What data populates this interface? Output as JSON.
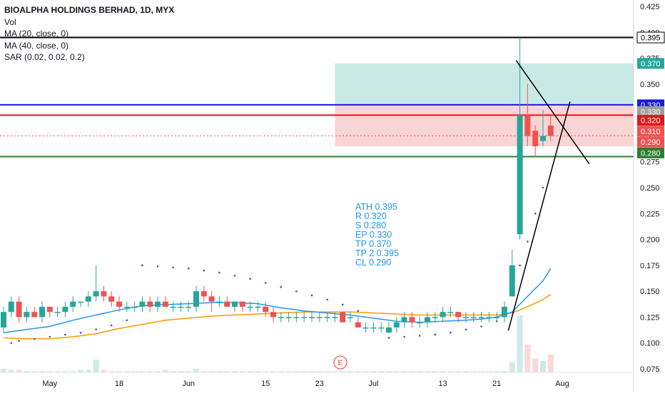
{
  "legend": {
    "title": "BIOALPHA HOLDINGS BERHAD, 1D, MYX",
    "vol": "Vol",
    "ma20": "MA (20, close, 0)",
    "ma40": "MA (40, close, 0)",
    "sar": "SAR (0.02, 0.02, 0.2)"
  },
  "notes": [
    "ATH 0.395",
    "R 0.320",
    "S 0.280",
    "EP 0.330",
    "TP 0.370",
    "TP 2 0.395",
    "CL 0.290"
  ],
  "event_marker": "E",
  "colors": {
    "up": "#26a69a",
    "down": "#ef5350",
    "ma20": "#2196f3",
    "ma40": "#ff9800",
    "sar": "#3f51b5",
    "black_line": "#000000",
    "blue_line": "#1a1ad8",
    "red_line": "#e01818",
    "green_line": "#2e7d32",
    "target_zone": "#b2dfdb",
    "stop_zone": "#f8c9c9",
    "note_text": "#2196f3"
  },
  "chart_data": {
    "type": "candlestick",
    "x_ticks": [
      "May",
      "18",
      "Jun",
      "15",
      "23",
      "Jul",
      "13",
      "21",
      "Aug"
    ],
    "y_ticks": [
      "0.075",
      "0.100",
      "0.125",
      "0.150",
      "0.175",
      "0.200",
      "0.225",
      "0.250",
      "0.275",
      "0.300",
      "0.325",
      "0.350",
      "0.375",
      "0.400",
      "0.425"
    ],
    "ylim": [
      0.07,
      0.43
    ],
    "candles": [
      {
        "o": 0.115,
        "h": 0.135,
        "l": 0.11,
        "c": 0.13
      },
      {
        "o": 0.13,
        "h": 0.145,
        "l": 0.125,
        "c": 0.14
      },
      {
        "o": 0.14,
        "h": 0.145,
        "l": 0.12,
        "c": 0.125
      },
      {
        "o": 0.125,
        "h": 0.135,
        "l": 0.12,
        "c": 0.13
      },
      {
        "o": 0.13,
        "h": 0.135,
        "l": 0.125,
        "c": 0.125
      },
      {
        "o": 0.125,
        "h": 0.14,
        "l": 0.12,
        "c": 0.135
      },
      {
        "o": 0.135,
        "h": 0.135,
        "l": 0.125,
        "c": 0.13
      },
      {
        "o": 0.13,
        "h": 0.135,
        "l": 0.125,
        "c": 0.13
      },
      {
        "o": 0.13,
        "h": 0.14,
        "l": 0.125,
        "c": 0.135
      },
      {
        "o": 0.135,
        "h": 0.145,
        "l": 0.13,
        "c": 0.14
      },
      {
        "o": 0.14,
        "h": 0.14,
        "l": 0.135,
        "c": 0.14
      },
      {
        "o": 0.14,
        "h": 0.15,
        "l": 0.135,
        "c": 0.145
      },
      {
        "o": 0.145,
        "h": 0.175,
        "l": 0.14,
        "c": 0.15
      },
      {
        "o": 0.15,
        "h": 0.155,
        "l": 0.14,
        "c": 0.145
      },
      {
        "o": 0.145,
        "h": 0.15,
        "l": 0.135,
        "c": 0.14
      },
      {
        "o": 0.14,
        "h": 0.145,
        "l": 0.13,
        "c": 0.135
      },
      {
        "o": 0.135,
        "h": 0.14,
        "l": 0.13,
        "c": 0.135
      },
      {
        "o": 0.135,
        "h": 0.14,
        "l": 0.13,
        "c": 0.135
      },
      {
        "o": 0.135,
        "h": 0.145,
        "l": 0.13,
        "c": 0.14
      },
      {
        "o": 0.14,
        "h": 0.145,
        "l": 0.13,
        "c": 0.135
      },
      {
        "o": 0.135,
        "h": 0.145,
        "l": 0.13,
        "c": 0.14
      },
      {
        "o": 0.14,
        "h": 0.145,
        "l": 0.135,
        "c": 0.135
      },
      {
        "o": 0.135,
        "h": 0.14,
        "l": 0.13,
        "c": 0.135
      },
      {
        "o": 0.135,
        "h": 0.14,
        "l": 0.13,
        "c": 0.135
      },
      {
        "o": 0.135,
        "h": 0.14,
        "l": 0.13,
        "c": 0.135
      },
      {
        "o": 0.135,
        "h": 0.155,
        "l": 0.13,
        "c": 0.15
      },
      {
        "o": 0.15,
        "h": 0.155,
        "l": 0.14,
        "c": 0.145
      },
      {
        "o": 0.145,
        "h": 0.15,
        "l": 0.13,
        "c": 0.14
      },
      {
        "o": 0.14,
        "h": 0.145,
        "l": 0.135,
        "c": 0.14
      },
      {
        "o": 0.14,
        "h": 0.145,
        "l": 0.135,
        "c": 0.135
      },
      {
        "o": 0.135,
        "h": 0.14,
        "l": 0.13,
        "c": 0.14
      },
      {
        "o": 0.14,
        "h": 0.14,
        "l": 0.13,
        "c": 0.135
      },
      {
        "o": 0.135,
        "h": 0.14,
        "l": 0.13,
        "c": 0.135
      },
      {
        "o": 0.135,
        "h": 0.14,
        "l": 0.13,
        "c": 0.135
      },
      {
        "o": 0.135,
        "h": 0.14,
        "l": 0.125,
        "c": 0.13
      },
      {
        "o": 0.13,
        "h": 0.135,
        "l": 0.12,
        "c": 0.125
      },
      {
        "o": 0.125,
        "h": 0.13,
        "l": 0.12,
        "c": 0.125
      },
      {
        "o": 0.125,
        "h": 0.13,
        "l": 0.12,
        "c": 0.125
      },
      {
        "o": 0.125,
        "h": 0.13,
        "l": 0.12,
        "c": 0.125
      },
      {
        "o": 0.125,
        "h": 0.13,
        "l": 0.12,
        "c": 0.125
      },
      {
        "o": 0.125,
        "h": 0.13,
        "l": 0.12,
        "c": 0.125
      },
      {
        "o": 0.125,
        "h": 0.13,
        "l": 0.12,
        "c": 0.125
      },
      {
        "o": 0.125,
        "h": 0.13,
        "l": 0.12,
        "c": 0.125
      },
      {
        "o": 0.125,
        "h": 0.13,
        "l": 0.12,
        "c": 0.125
      },
      {
        "o": 0.13,
        "h": 0.13,
        "l": 0.12,
        "c": 0.12
      },
      {
        "o": 0.125,
        "h": 0.13,
        "l": 0.12,
        "c": 0.125
      },
      {
        "o": 0.12,
        "h": 0.125,
        "l": 0.115,
        "c": 0.115
      },
      {
        "o": 0.115,
        "h": 0.12,
        "l": 0.11,
        "c": 0.115
      },
      {
        "o": 0.115,
        "h": 0.12,
        "l": 0.11,
        "c": 0.115
      },
      {
        "o": 0.115,
        "h": 0.12,
        "l": 0.11,
        "c": 0.115
      },
      {
        "o": 0.11,
        "h": 0.12,
        "l": 0.11,
        "c": 0.115
      },
      {
        "o": 0.115,
        "h": 0.125,
        "l": 0.11,
        "c": 0.12
      },
      {
        "o": 0.12,
        "h": 0.13,
        "l": 0.115,
        "c": 0.125
      },
      {
        "o": 0.125,
        "h": 0.13,
        "l": 0.115,
        "c": 0.12
      },
      {
        "o": 0.12,
        "h": 0.125,
        "l": 0.115,
        "c": 0.12
      },
      {
        "o": 0.12,
        "h": 0.13,
        "l": 0.115,
        "c": 0.125
      },
      {
        "o": 0.125,
        "h": 0.13,
        "l": 0.12,
        "c": 0.125
      },
      {
        "o": 0.125,
        "h": 0.135,
        "l": 0.12,
        "c": 0.13
      },
      {
        "o": 0.13,
        "h": 0.135,
        "l": 0.125,
        "c": 0.13
      },
      {
        "o": 0.13,
        "h": 0.13,
        "l": 0.12,
        "c": 0.125
      },
      {
        "o": 0.125,
        "h": 0.13,
        "l": 0.12,
        "c": 0.125
      },
      {
        "o": 0.125,
        "h": 0.13,
        "l": 0.12,
        "c": 0.125
      },
      {
        "o": 0.125,
        "h": 0.13,
        "l": 0.12,
        "c": 0.125
      },
      {
        "o": 0.125,
        "h": 0.13,
        "l": 0.12,
        "c": 0.125
      },
      {
        "o": 0.125,
        "h": 0.13,
        "l": 0.12,
        "c": 0.125
      },
      {
        "o": 0.125,
        "h": 0.14,
        "l": 0.12,
        "c": 0.135
      },
      {
        "o": 0.145,
        "h": 0.19,
        "l": 0.145,
        "c": 0.175
      },
      {
        "o": 0.205,
        "h": 0.395,
        "l": 0.2,
        "c": 0.32
      },
      {
        "o": 0.32,
        "h": 0.35,
        "l": 0.29,
        "c": 0.3
      },
      {
        "o": 0.305,
        "h": 0.31,
        "l": 0.28,
        "c": 0.29
      },
      {
        "o": 0.295,
        "h": 0.325,
        "l": 0.29,
        "c": 0.3
      },
      {
        "o": 0.31,
        "h": 0.32,
        "l": 0.295,
        "c": 0.3
      }
    ],
    "ma20": [
      [
        0,
        0.11
      ],
      [
        3,
        0.113
      ],
      [
        6,
        0.116
      ],
      [
        9,
        0.122
      ],
      [
        12,
        0.127
      ],
      [
        15,
        0.132
      ],
      [
        18,
        0.136
      ],
      [
        21,
        0.137
      ],
      [
        24,
        0.138
      ],
      [
        27,
        0.139
      ],
      [
        30,
        0.139
      ],
      [
        33,
        0.138
      ],
      [
        36,
        0.134
      ],
      [
        39,
        0.131
      ],
      [
        42,
        0.129
      ],
      [
        45,
        0.127
      ],
      [
        48,
        0.124
      ],
      [
        51,
        0.121
      ],
      [
        54,
        0.12
      ],
      [
        57,
        0.121
      ],
      [
        60,
        0.122
      ],
      [
        62,
        0.123
      ],
      [
        64,
        0.125
      ],
      [
        66,
        0.13
      ],
      [
        68,
        0.145
      ],
      [
        70,
        0.16
      ],
      [
        71,
        0.172
      ]
    ],
    "ma40": [
      [
        0,
        0.105
      ],
      [
        3,
        0.104
      ],
      [
        6,
        0.104
      ],
      [
        9,
        0.106
      ],
      [
        12,
        0.109
      ],
      [
        15,
        0.114
      ],
      [
        18,
        0.118
      ],
      [
        21,
        0.122
      ],
      [
        24,
        0.124
      ],
      [
        27,
        0.126
      ],
      [
        30,
        0.127
      ],
      [
        33,
        0.128
      ],
      [
        36,
        0.129
      ],
      [
        39,
        0.13
      ],
      [
        42,
        0.13
      ],
      [
        45,
        0.13
      ],
      [
        48,
        0.129
      ],
      [
        51,
        0.128
      ],
      [
        54,
        0.127
      ],
      [
        57,
        0.127
      ],
      [
        60,
        0.127
      ],
      [
        62,
        0.127
      ],
      [
        64,
        0.127
      ],
      [
        66,
        0.129
      ],
      [
        68,
        0.135
      ],
      [
        70,
        0.142
      ],
      [
        71,
        0.147
      ]
    ],
    "sar": [
      [
        1,
        0.1
      ],
      [
        2,
        0.102
      ],
      [
        4,
        0.104
      ],
      [
        6,
        0.106
      ],
      [
        8,
        0.108
      ],
      [
        10,
        0.11
      ],
      [
        12,
        0.113
      ],
      [
        14,
        0.117
      ],
      [
        16,
        0.122
      ],
      [
        18,
        0.175
      ],
      [
        20,
        0.174
      ],
      [
        22,
        0.173
      ],
      [
        24,
        0.172
      ],
      [
        26,
        0.17
      ],
      [
        28,
        0.168
      ],
      [
        30,
        0.165
      ],
      [
        32,
        0.162
      ],
      [
        34,
        0.158
      ],
      [
        36,
        0.154
      ],
      [
        38,
        0.15
      ],
      [
        40,
        0.146
      ],
      [
        42,
        0.142
      ],
      [
        44,
        0.137
      ],
      [
        46,
        0.131
      ],
      [
        50,
        0.105
      ],
      [
        52,
        0.106
      ],
      [
        54,
        0.107
      ],
      [
        56,
        0.108
      ],
      [
        58,
        0.11
      ],
      [
        60,
        0.113
      ],
      [
        62,
        0.116
      ],
      [
        64,
        0.121
      ],
      [
        66,
        0.15
      ],
      [
        67,
        0.175
      ],
      [
        68,
        0.198
      ],
      [
        69,
        0.225
      ],
      [
        70,
        0.25
      ]
    ],
    "volume": [
      0.3,
      0.2,
      0.2,
      0.1,
      0.1,
      0.1,
      0.1,
      0.1,
      0.1,
      0.1,
      0.2,
      0.2,
      1.0,
      0.2,
      0.1,
      0.1,
      0.1,
      0.1,
      0.1,
      0.1,
      0.1,
      0.2,
      0.1,
      0.1,
      0.1,
      0.3,
      0.1,
      0.1,
      0.1,
      0.1,
      0.1,
      0.1,
      0.1,
      0.1,
      0.1,
      0.1,
      0.1,
      0.1,
      0.1,
      0.1,
      0.1,
      0.1,
      0.1,
      0.1,
      0.1,
      0.1,
      0.1,
      0.1,
      0.1,
      0.1,
      0.1,
      0.1,
      0.1,
      0.1,
      0.1,
      0.1,
      0.1,
      0.1,
      0.1,
      0.1,
      0.1,
      0.1,
      0.1,
      0.1,
      0.1,
      0.1,
      0.8,
      4.5,
      2.2,
      1.1,
      0.9,
      1.4
    ],
    "horizontal_lines": [
      {
        "name": "ath",
        "value": 0.395,
        "label": "0.395",
        "color": "#000000"
      },
      {
        "name": "entry",
        "value": 0.33,
        "label": "0.330",
        "color": "#1a1ad8"
      },
      {
        "name": "resistance",
        "value": 0.32,
        "label": "0.320",
        "color": "#e01818"
      },
      {
        "name": "support",
        "value": 0.28,
        "label": "0.280",
        "color": "#2e7d32"
      }
    ],
    "price_tags": [
      {
        "value": 0.37,
        "label": "0.370",
        "bg": "#26a69a"
      },
      {
        "value": 0.33,
        "label": "0.330",
        "bg": "#9e9e9e"
      },
      {
        "value": 0.31,
        "label": "0.310",
        "bg": "#ef5350"
      },
      {
        "value": 0.29,
        "label": "0.290",
        "bg": "#ef5350"
      }
    ],
    "last_close": 0.3,
    "target_zone": {
      "top": 0.37,
      "bottom": 0.33
    },
    "stop_zone": {
      "top": 0.33,
      "bottom": 0.29
    },
    "trendlines": [
      {
        "name": "support-trendline",
        "from": [
          65.5,
          0.112
        ],
        "to": [
          73.5,
          0.333
        ]
      },
      {
        "name": "resistance-trendline",
        "from": [
          66.5,
          0.373
        ],
        "to": [
          76.0,
          0.273
        ]
      }
    ]
  }
}
